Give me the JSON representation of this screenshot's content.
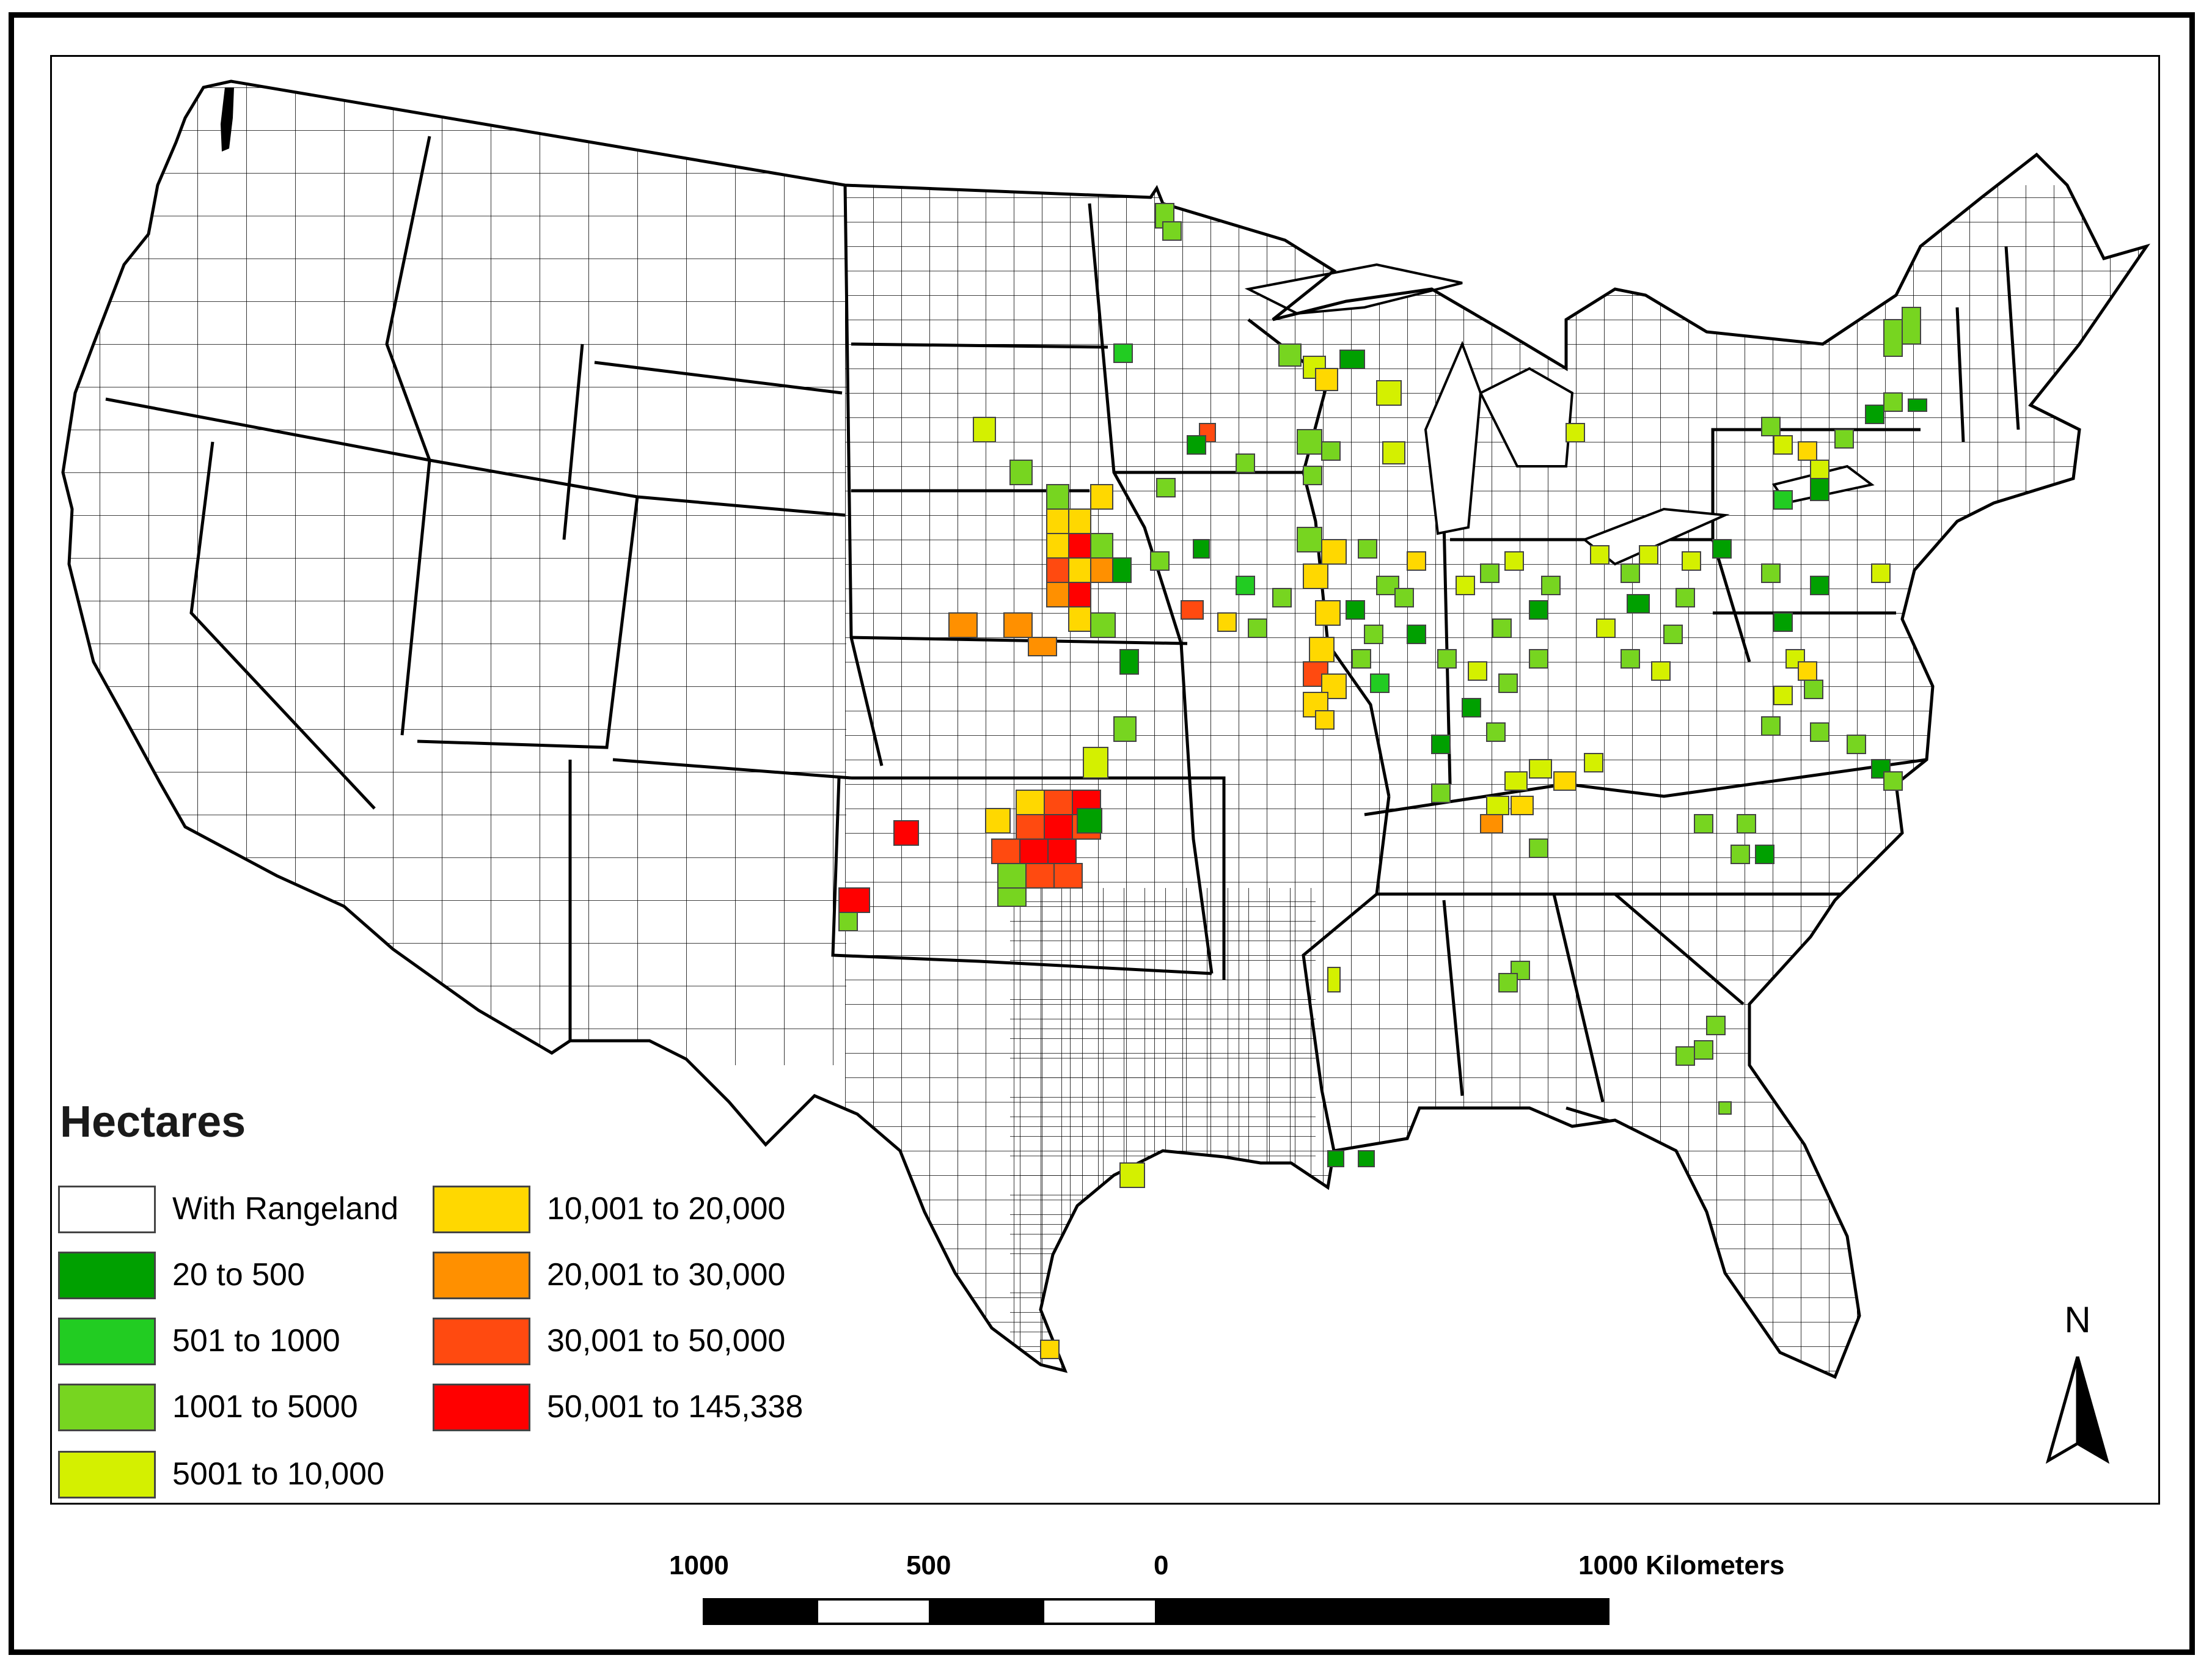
{
  "legend": {
    "title": "Hectares",
    "classes": [
      {
        "label": "With Rangeland",
        "color": "#ffffff"
      },
      {
        "label": "20 to 500",
        "color": "#00a000"
      },
      {
        "label": "501 to 1000",
        "color": "#22cc22"
      },
      {
        "label": "1001 to 5000",
        "color": "#77d520"
      },
      {
        "label": "5001 to 10,000",
        "color": "#d4f000"
      },
      {
        "label": "10,001 to 20,000",
        "color": "#ffd800"
      },
      {
        "label": "20,001 to 30,000",
        "color": "#ff9000"
      },
      {
        "label": "30,001 to 50,000",
        "color": "#ff4a10"
      },
      {
        "label": "50,001 to 145,338",
        "color": "#ff0000"
      }
    ]
  },
  "north_arrow": {
    "letter": "N"
  },
  "scale_bar": {
    "labels": [
      "1000",
      "500",
      "0",
      "1000 Kilometers"
    ]
  }
}
